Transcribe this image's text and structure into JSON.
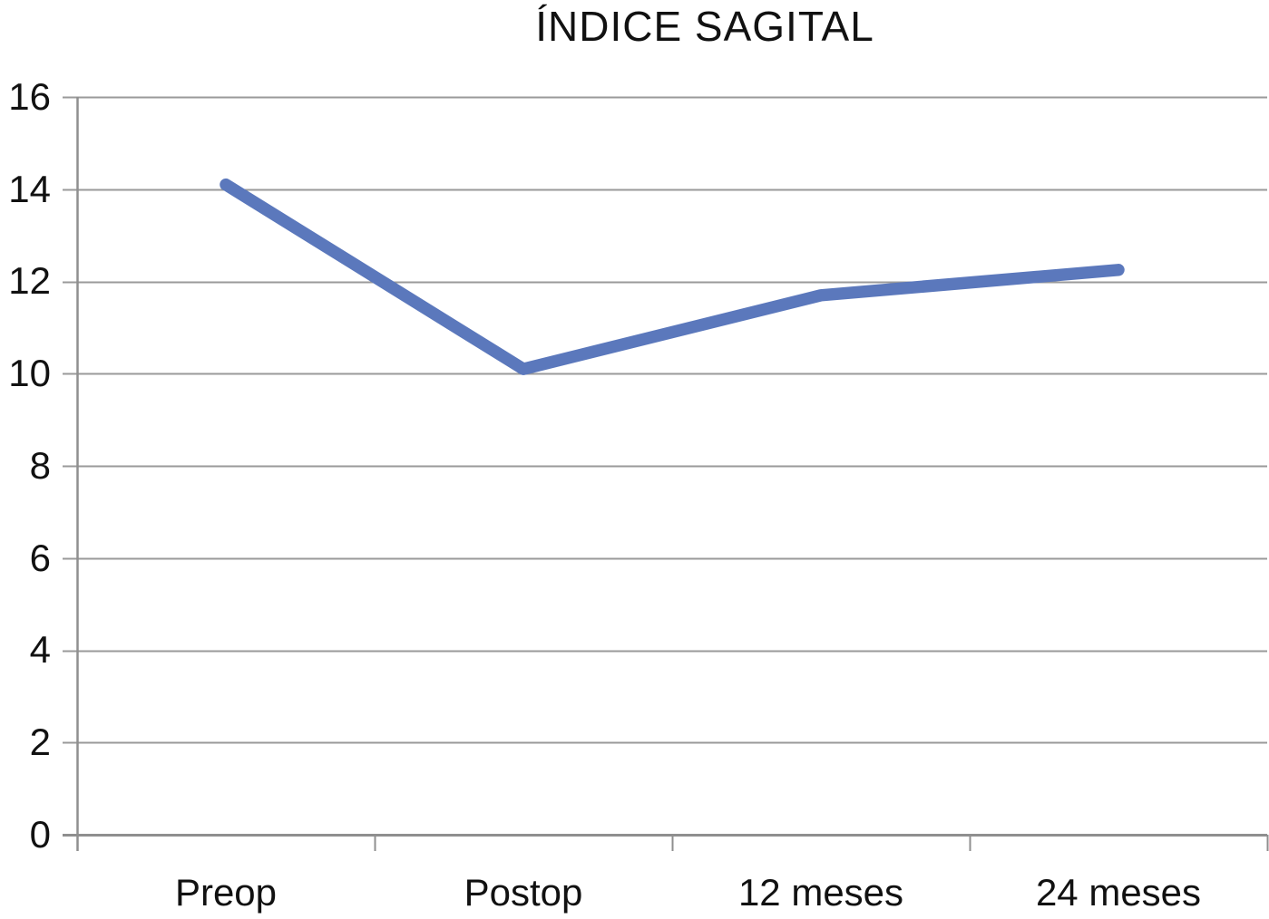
{
  "chart_data": {
    "type": "line",
    "title": "ÍNDICE SAGITAL",
    "categories": [
      "Preop",
      "Postop",
      "12 meses",
      "24 meses"
    ],
    "values": [
      14.1,
      10.1,
      11.7,
      12.25
    ],
    "xlabel": "",
    "ylabel": "",
    "ylim": [
      0,
      16
    ],
    "ytick_step": 2,
    "ytick_labels": [
      "16",
      "14",
      "12",
      "10",
      "8",
      "6",
      "4",
      "2",
      "0"
    ],
    "grid": "horizontal",
    "legend": "none",
    "colors": {
      "line": "#5b78bc",
      "grid": "#9a9a9a",
      "axis": "#8f8f8f",
      "text": "#111111",
      "background": "#ffffff"
    }
  }
}
